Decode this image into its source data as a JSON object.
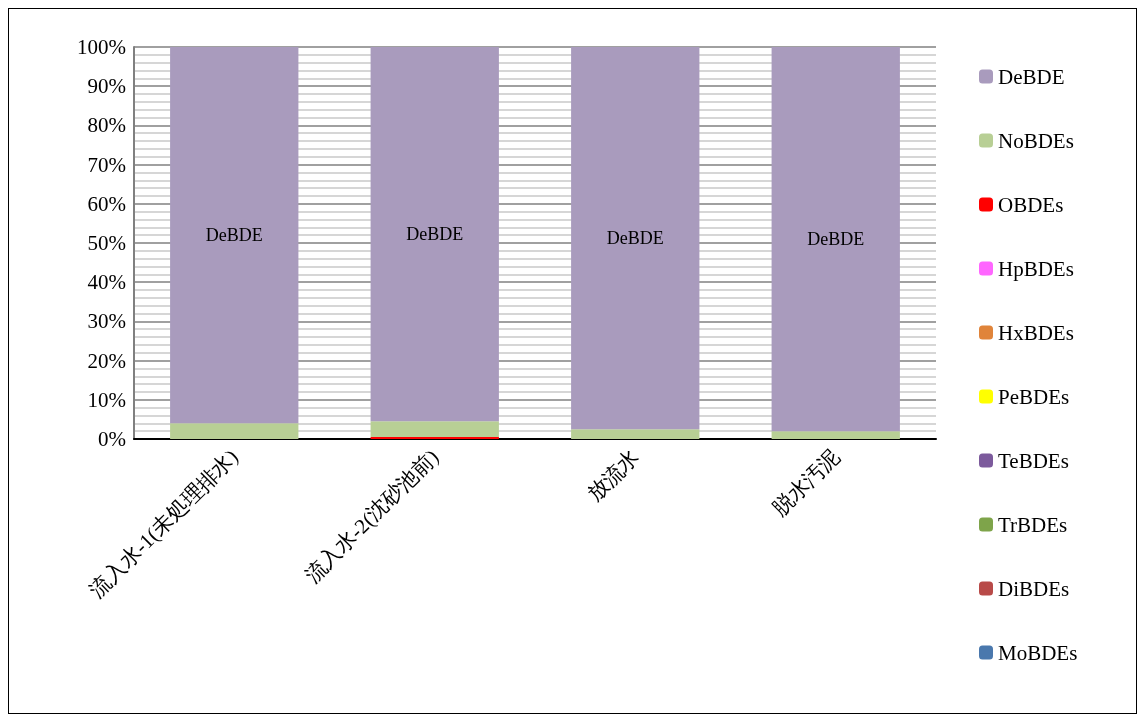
{
  "chart_data": {
    "type": "bar",
    "stacked": true,
    "categories": [
      "流入水-1(未処理排水)",
      "流入水-2(沈砂池前)",
      "放流水",
      "脱水汚泥"
    ],
    "series": [
      {
        "name": "MoBDEs",
        "color": "#4a78ad",
        "values": [
          0,
          0,
          0,
          0
        ]
      },
      {
        "name": "DiBDEs",
        "color": "#b84a48",
        "values": [
          0,
          0,
          0,
          0
        ]
      },
      {
        "name": "TrBDEs",
        "color": "#7ea44a",
        "values": [
          0,
          0,
          0,
          0
        ]
      },
      {
        "name": "TeBDEs",
        "color": "#7c5a9c",
        "values": [
          0,
          0,
          0,
          0
        ]
      },
      {
        "name": "PeBDEs",
        "color": "#ffff00",
        "values": [
          0,
          0,
          0,
          0
        ]
      },
      {
        "name": "HxBDEs",
        "color": "#e0843a",
        "values": [
          0,
          0,
          0,
          0
        ]
      },
      {
        "name": "HpBDEs",
        "color": "#ff66ff",
        "values": [
          0,
          0,
          0,
          0
        ]
      },
      {
        "name": "OBDEs",
        "color": "#ff0000",
        "values": [
          0,
          0.5,
          0,
          0
        ]
      },
      {
        "name": "NoBDEs",
        "color": "#b8cf95",
        "values": [
          4,
          4,
          2.5,
          2
        ]
      },
      {
        "name": "DeBDE",
        "color": "#a99bbd",
        "values": [
          96,
          95.5,
          97.5,
          98
        ]
      }
    ],
    "ylim": [
      0,
      100
    ],
    "yticks": [
      {
        "value": 0,
        "label": "0%"
      },
      {
        "value": 10,
        "label": "10%"
      },
      {
        "value": 20,
        "label": "20%"
      },
      {
        "value": 30,
        "label": "30%"
      },
      {
        "value": 40,
        "label": "40%"
      },
      {
        "value": 50,
        "label": "50%"
      },
      {
        "value": 60,
        "label": "60%"
      },
      {
        "value": 70,
        "label": "70%"
      },
      {
        "value": 80,
        "label": "80%"
      },
      {
        "value": 90,
        "label": "90%"
      },
      {
        "value": 100,
        "label": "100%"
      }
    ],
    "annotations": [
      "DeBDE",
      "DeBDE",
      "DeBDE",
      "DeBDE"
    ],
    "grid": "y",
    "legend": "right"
  }
}
